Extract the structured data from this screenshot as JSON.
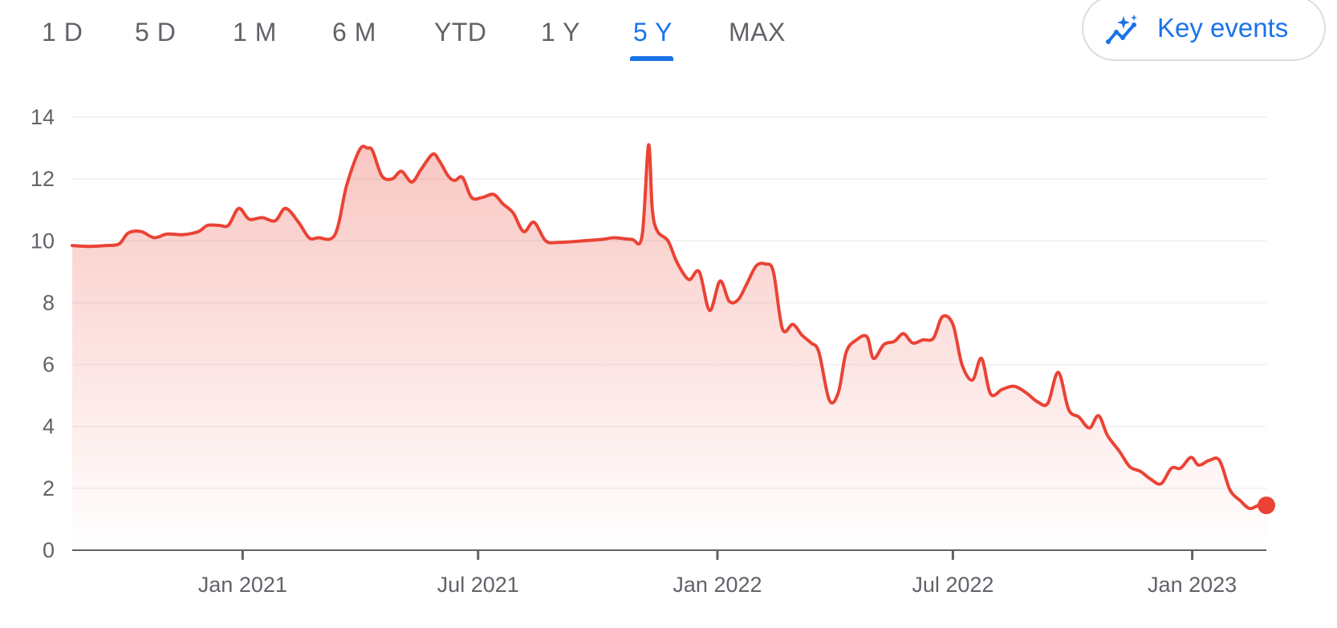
{
  "range_tabs": [
    {
      "label": "1 D",
      "active": false
    },
    {
      "label": "5 D",
      "active": false
    },
    {
      "label": "1 M",
      "active": false
    },
    {
      "label": "6 M",
      "active": false
    },
    {
      "label": "YTD",
      "active": false
    },
    {
      "label": "1 Y",
      "active": false
    },
    {
      "label": "5 Y",
      "active": true
    },
    {
      "label": "MAX",
      "active": false
    }
  ],
  "key_events": {
    "label": "Key events",
    "icon": "sparkle-trend-icon"
  },
  "colors": {
    "line": "#ea4335",
    "accent": "#1a73e8",
    "grid": "#f1f3f4",
    "axis": "#5f6368"
  },
  "chart_data": {
    "type": "area",
    "title": "",
    "xlabel": "",
    "ylabel": "",
    "ylim": [
      0,
      14
    ],
    "yticks": [
      0,
      2,
      4,
      6,
      8,
      10,
      12,
      14
    ],
    "grid": true,
    "xlim": [
      "2020-08-23",
      "2023-02-27"
    ],
    "xticks": [
      {
        "label": "Jan 2021",
        "date": "2021-01-01"
      },
      {
        "label": "Jul 2021",
        "date": "2021-07-01"
      },
      {
        "label": "Jan 2022",
        "date": "2022-01-01"
      },
      {
        "label": "Jul 2022",
        "date": "2022-07-01"
      },
      {
        "label": "Jan 2023",
        "date": "2023-01-01"
      }
    ],
    "series": [
      {
        "name": "",
        "points": [
          [
            "2020-08-23",
            9.85
          ],
          [
            "2020-09-05",
            9.82
          ],
          [
            "2020-09-18",
            9.85
          ],
          [
            "2020-09-28",
            9.9
          ],
          [
            "2020-10-05",
            10.25
          ],
          [
            "2020-10-15",
            10.3
          ],
          [
            "2020-10-25",
            10.1
          ],
          [
            "2020-11-04",
            10.22
          ],
          [
            "2020-11-16",
            10.2
          ],
          [
            "2020-11-28",
            10.3
          ],
          [
            "2020-12-05",
            10.5
          ],
          [
            "2020-12-14",
            10.5
          ],
          [
            "2020-12-21",
            10.5
          ],
          [
            "2020-12-29",
            11.05
          ],
          [
            "2021-01-06",
            10.7
          ],
          [
            "2021-01-16",
            10.75
          ],
          [
            "2021-01-26",
            10.65
          ],
          [
            "2021-02-03",
            11.05
          ],
          [
            "2021-02-13",
            10.6
          ],
          [
            "2021-02-21",
            10.1
          ],
          [
            "2021-02-28",
            10.1
          ],
          [
            "2021-03-13",
            10.2
          ],
          [
            "2021-03-22",
            11.8
          ],
          [
            "2021-04-01",
            12.95
          ],
          [
            "2021-04-07",
            13.0
          ],
          [
            "2021-04-11",
            12.9
          ],
          [
            "2021-04-18",
            12.1
          ],
          [
            "2021-04-26",
            12.0
          ],
          [
            "2021-05-03",
            12.25
          ],
          [
            "2021-05-11",
            11.9
          ],
          [
            "2021-05-18",
            12.3
          ],
          [
            "2021-05-27",
            12.8
          ],
          [
            "2021-06-01",
            12.6
          ],
          [
            "2021-06-08",
            12.1
          ],
          [
            "2021-06-13",
            11.95
          ],
          [
            "2021-06-19",
            12.05
          ],
          [
            "2021-06-26",
            11.4
          ],
          [
            "2021-07-04",
            11.4
          ],
          [
            "2021-07-13",
            11.5
          ],
          [
            "2021-07-20",
            11.2
          ],
          [
            "2021-07-28",
            10.9
          ],
          [
            "2021-08-05",
            10.3
          ],
          [
            "2021-08-13",
            10.6
          ],
          [
            "2021-08-22",
            10.0
          ],
          [
            "2021-09-01",
            9.95
          ],
          [
            "2021-09-20",
            10.0
          ],
          [
            "2021-10-05",
            10.05
          ],
          [
            "2021-10-14",
            10.1
          ],
          [
            "2021-10-27",
            10.05
          ],
          [
            "2021-11-04",
            10.15
          ],
          [
            "2021-11-09",
            13.1
          ],
          [
            "2021-11-12",
            11.0
          ],
          [
            "2021-11-16",
            10.3
          ],
          [
            "2021-11-24",
            10.0
          ],
          [
            "2021-12-01",
            9.3
          ],
          [
            "2021-12-10",
            8.75
          ],
          [
            "2021-12-18",
            9.0
          ],
          [
            "2021-12-26",
            7.75
          ],
          [
            "2022-01-03",
            8.7
          ],
          [
            "2022-01-10",
            8.05
          ],
          [
            "2022-01-17",
            8.1
          ],
          [
            "2022-01-24",
            8.65
          ],
          [
            "2022-01-31",
            9.2
          ],
          [
            "2022-02-07",
            9.25
          ],
          [
            "2022-02-13",
            9.0
          ],
          [
            "2022-02-20",
            7.15
          ],
          [
            "2022-02-28",
            7.3
          ],
          [
            "2022-03-07",
            6.95
          ],
          [
            "2022-03-14",
            6.7
          ],
          [
            "2022-03-20",
            6.4
          ],
          [
            "2022-03-28",
            4.85
          ],
          [
            "2022-04-04",
            5.1
          ],
          [
            "2022-04-10",
            6.4
          ],
          [
            "2022-04-18",
            6.8
          ],
          [
            "2022-04-26",
            6.9
          ],
          [
            "2022-05-01",
            6.2
          ],
          [
            "2022-05-09",
            6.65
          ],
          [
            "2022-05-17",
            6.75
          ],
          [
            "2022-05-24",
            7.0
          ],
          [
            "2022-05-31",
            6.7
          ],
          [
            "2022-06-08",
            6.8
          ],
          [
            "2022-06-16",
            6.85
          ],
          [
            "2022-06-23",
            7.55
          ],
          [
            "2022-07-01",
            7.3
          ],
          [
            "2022-07-08",
            6.0
          ],
          [
            "2022-07-16",
            5.5
          ],
          [
            "2022-07-23",
            6.2
          ],
          [
            "2022-07-30",
            5.05
          ],
          [
            "2022-08-08",
            5.2
          ],
          [
            "2022-08-17",
            5.3
          ],
          [
            "2022-08-26",
            5.1
          ],
          [
            "2022-09-04",
            4.8
          ],
          [
            "2022-09-12",
            4.75
          ],
          [
            "2022-09-20",
            5.75
          ],
          [
            "2022-09-28",
            4.55
          ],
          [
            "2022-10-06",
            4.3
          ],
          [
            "2022-10-14",
            3.95
          ],
          [
            "2022-10-21",
            4.35
          ],
          [
            "2022-10-28",
            3.7
          ],
          [
            "2022-11-06",
            3.2
          ],
          [
            "2022-11-14",
            2.7
          ],
          [
            "2022-11-22",
            2.55
          ],
          [
            "2022-11-30",
            2.3
          ],
          [
            "2022-12-08",
            2.15
          ],
          [
            "2022-12-16",
            2.65
          ],
          [
            "2022-12-23",
            2.65
          ],
          [
            "2022-12-31",
            3.0
          ],
          [
            "2023-01-06",
            2.75
          ],
          [
            "2023-01-14",
            2.9
          ],
          [
            "2023-01-22",
            2.9
          ],
          [
            "2023-01-30",
            1.95
          ],
          [
            "2023-02-07",
            1.6
          ],
          [
            "2023-02-14",
            1.35
          ],
          [
            "2023-02-21",
            1.45
          ],
          [
            "2023-02-27",
            1.45
          ]
        ]
      }
    ]
  }
}
